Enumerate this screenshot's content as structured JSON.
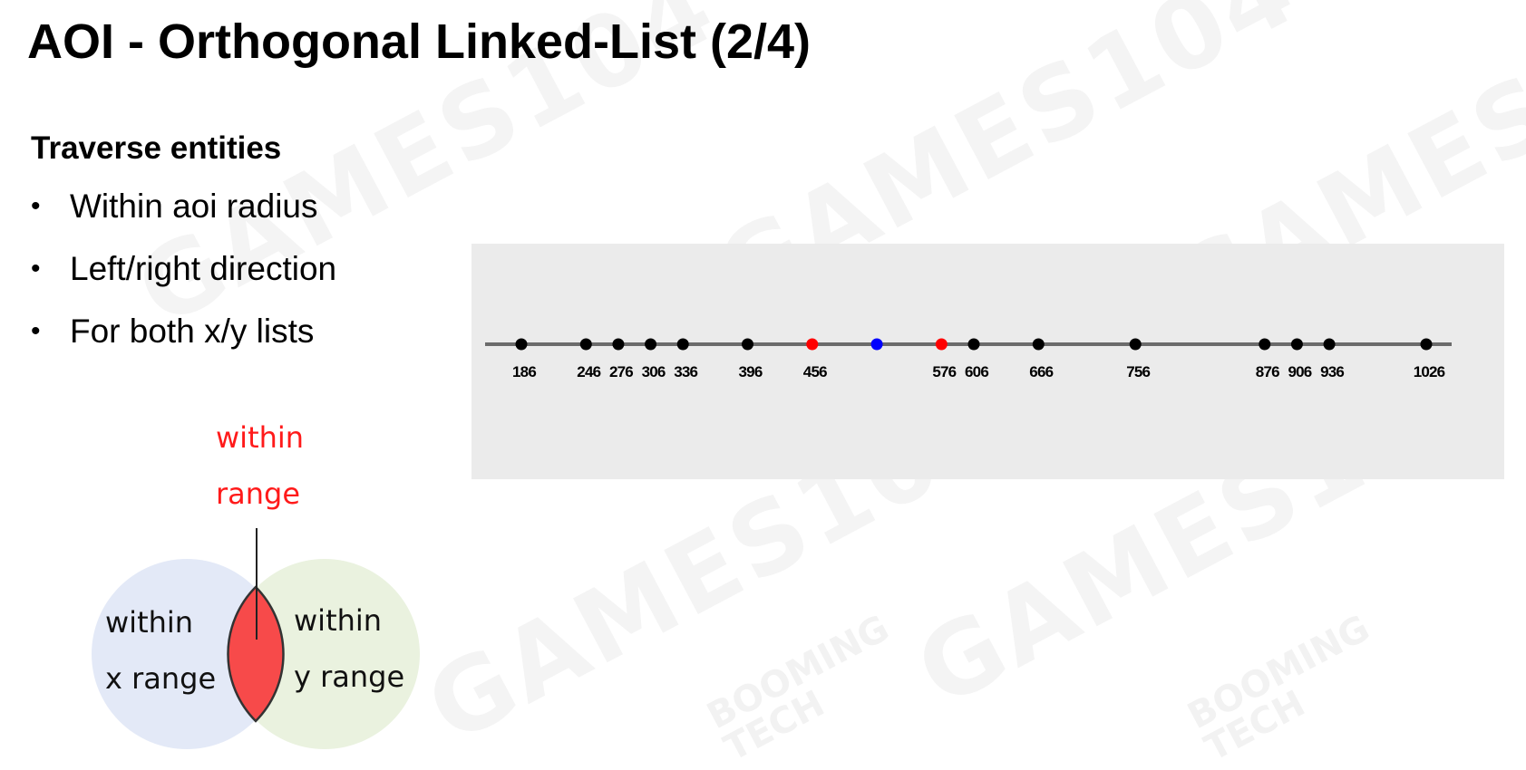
{
  "slide": {
    "title": "AOI - Orthogonal Linked-List (2/4)",
    "subheading": "Traverse entities",
    "bullets": [
      "Within aoi radius",
      "Left/right direction",
      "For both x/y lists"
    ]
  },
  "axis": {
    "points": [
      {
        "value": 186,
        "label": "186",
        "color": "#000000"
      },
      {
        "value": 246,
        "label": "246",
        "color": "#000000"
      },
      {
        "value": 276,
        "label": "276",
        "color": "#000000"
      },
      {
        "value": 306,
        "label": "306",
        "color": "#000000"
      },
      {
        "value": 336,
        "label": "336",
        "color": "#000000"
      },
      {
        "value": 396,
        "label": "396",
        "color": "#000000"
      },
      {
        "value": 456,
        "label": "456",
        "color": "#ff0000"
      },
      {
        "value": 516,
        "label": "",
        "color": "#0000ff"
      },
      {
        "value": 576,
        "label": "576",
        "color": "#ff0000"
      },
      {
        "value": 606,
        "label": "606",
        "color": "#000000"
      },
      {
        "value": 666,
        "label": "666",
        "color": "#000000"
      },
      {
        "value": 756,
        "label": "756",
        "color": "#000000"
      },
      {
        "value": 876,
        "label": "876",
        "color": "#000000"
      },
      {
        "value": 906,
        "label": "906",
        "color": "#000000"
      },
      {
        "value": 936,
        "label": "936",
        "color": "#000000"
      },
      {
        "value": 1026,
        "label": "1026",
        "color": "#000000"
      }
    ],
    "range": [
      186,
      1026
    ],
    "line_color": "#6b6b6b",
    "panel_color": "#ebebeb"
  },
  "venn": {
    "top_label_line1": "within",
    "top_label_line2": "range",
    "left_label_line1": "within",
    "left_label_line2": "x range",
    "right_label_line1": "within",
    "right_label_line2": "y range",
    "left_color": "#e3e9f7",
    "right_color": "#eaf2df",
    "overlap_color": "#f74a4a",
    "top_label_color": "#ff1a1a"
  },
  "watermark": {
    "brand": "GAMES104",
    "sub1": "BOOMING",
    "sub2": "TECH"
  }
}
